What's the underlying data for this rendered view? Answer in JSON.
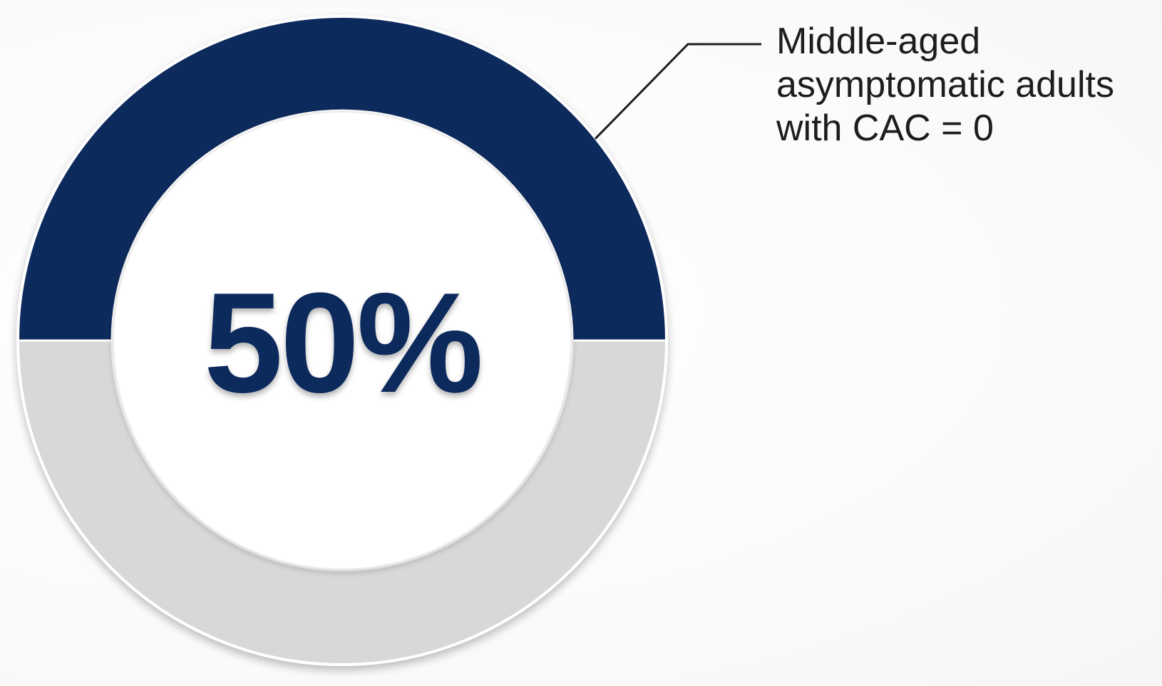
{
  "chart_data": {
    "type": "pie",
    "variant": "donut",
    "slices": [
      {
        "label": "Middle-aged asymptomatic adults with CAC = 0",
        "value": 50,
        "color": "#0d2a5c"
      },
      {
        "label": "",
        "value": 50,
        "color": "#d8d8d8"
      }
    ],
    "center_label": "50%",
    "annotation_lines": [
      "Middle-aged",
      "asymptomatic adults",
      "with CAC = 0"
    ]
  },
  "colors": {
    "accent": "#0d2a5c",
    "remainder": "#d8d8d8",
    "text": "#1d1d1f",
    "background": "#ffffff"
  }
}
